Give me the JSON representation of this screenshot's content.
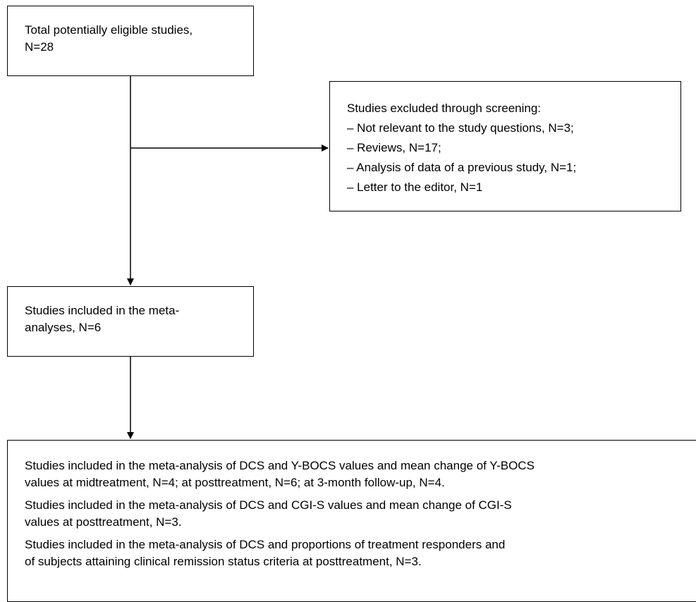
{
  "boxes": {
    "total": {
      "line1": "Total potentially eligible studies,",
      "line2": "N=28"
    },
    "excluded": {
      "heading": "Studies excluded through screening:",
      "items": [
        "– Not relevant to the study questions, N=3;",
        "– Reviews, N=17;",
        "– Analysis of data of a previous study, N=1;",
        "– Letter to the editor, N=1"
      ]
    },
    "included": {
      "line1": "Studies included in the meta-",
      "line2": "analyses, N=6"
    },
    "analyses": {
      "paragraphs": [
        {
          "line1": "Studies included in the meta-analysis of DCS and Y-BOCS values and mean change of Y-BOCS",
          "line2": "values at midtreatment, N=4; at posttreatment, N=6; at 3-month follow-up, N=4."
        },
        {
          "line1": "Studies included in the meta-analysis of DCS and CGI-S values and mean change of CGI-S",
          "line2": "values at posttreatment, N=3."
        },
        {
          "line1": "Studies included in the meta-analysis of DCS and proportions of treatment responders and",
          "line2": "of subjects attaining clinical remission status criteria at posttreatment, N=3."
        }
      ]
    }
  }
}
